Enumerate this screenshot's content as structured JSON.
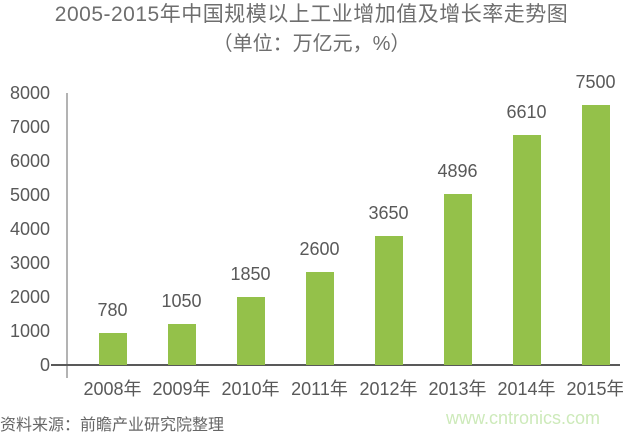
{
  "page": {
    "background": "#ffffff"
  },
  "chart_data": {
    "type": "bar",
    "title": "2005-2015年中国规模以上工业增加值及增长率走势图",
    "subtitle": "（单位：万亿元，%）",
    "categories": [
      "2008年",
      "2009年",
      "2010年",
      "2011年",
      "2012年",
      "2013年",
      "2014年",
      "2015年"
    ],
    "values": [
      780,
      1050,
      1850,
      2600,
      3650,
      4896,
      6610,
      7500
    ],
    "ylim": [
      0,
      8000
    ],
    "ytick_step": 1000,
    "grid": false,
    "legend_position": "none",
    "bar_color": "#94c14a",
    "axis_color": "#595959",
    "y_axis_line_color": "#b3b3b3",
    "label_color": "#595959",
    "title_color": "#6e6e6e"
  },
  "footer": {
    "source": "资料来源：前瞻产业研究院整理",
    "website": "www.cntronics.com",
    "website_color": "#cdeaba"
  }
}
